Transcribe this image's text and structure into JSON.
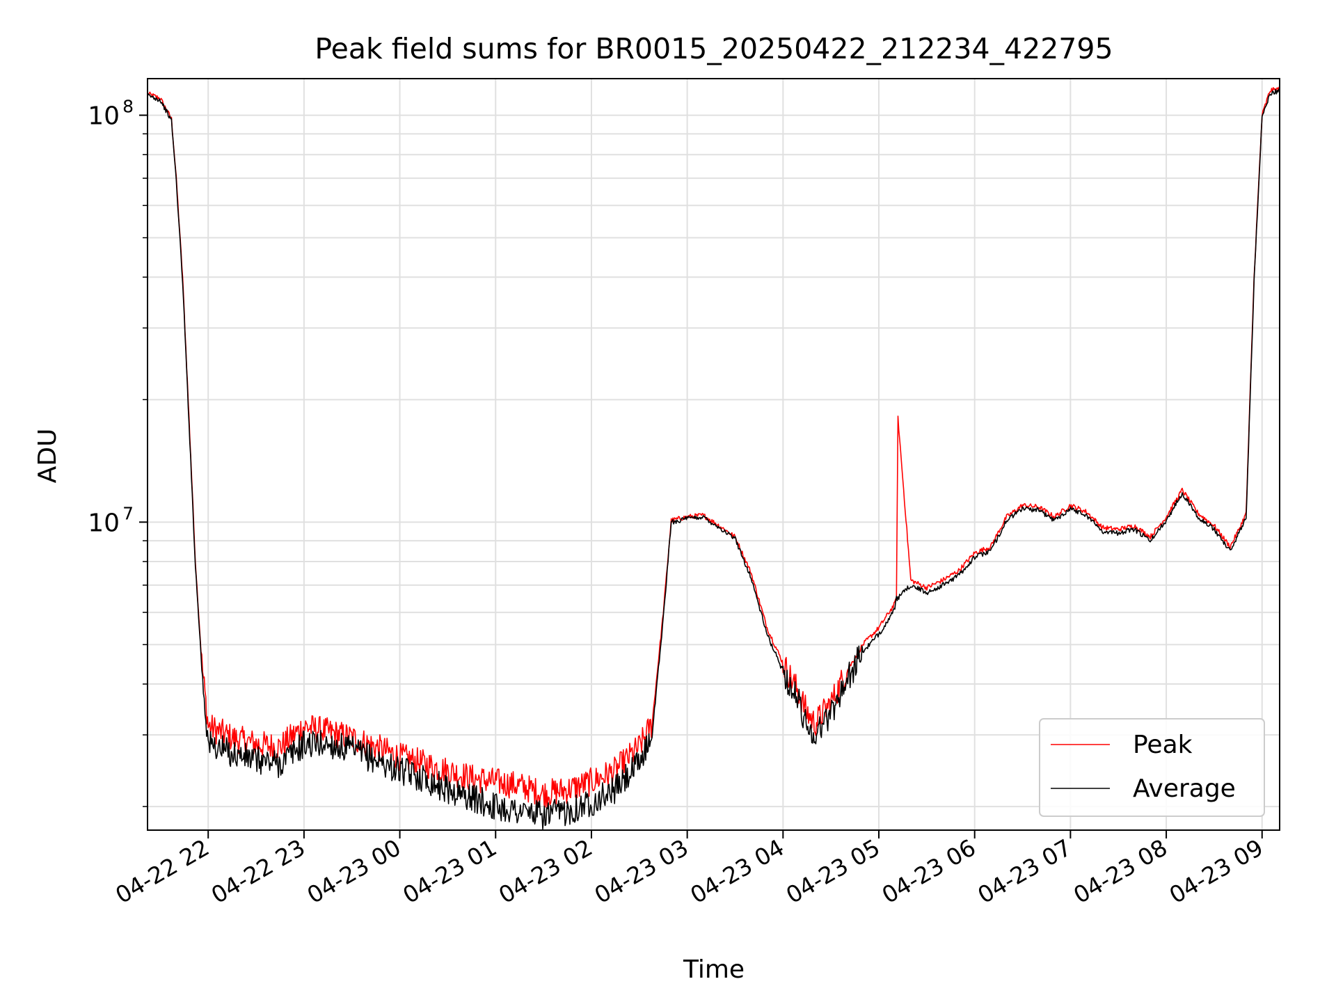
{
  "chart_data": {
    "type": "line",
    "title": "Peak field sums for BR0015_20250422_212234_422795",
    "xlabel": "Time",
    "ylabel": "ADU",
    "yscale": "log",
    "ylim": [
      1750000,
      123000000
    ],
    "xlim": [
      "2025-04-22 21:22",
      "2025-04-23 09:11"
    ],
    "grid": true,
    "legend_position": "lower right",
    "x_ticks": [
      "04-22 22",
      "04-22 23",
      "04-23 00",
      "04-23 01",
      "04-23 02",
      "04-23 03",
      "04-23 04",
      "04-23 05",
      "04-23 06",
      "04-23 07",
      "04-23 08",
      "04-23 09"
    ],
    "y_ticks": [
      {
        "value": 10000000,
        "base": "10",
        "exp": "7"
      },
      {
        "value": 100000000,
        "base": "10",
        "exp": "8"
      }
    ],
    "series": [
      {
        "name": "Peak",
        "color": "#ff0000",
        "x": [
          "2025-04-22 21:22",
          "2025-04-22 21:30",
          "2025-04-22 21:37",
          "2025-04-22 21:40",
          "2025-04-22 21:44",
          "2025-04-22 21:48",
          "2025-04-22 21:52",
          "2025-04-22 21:56",
          "2025-04-22 22:00",
          "2025-04-22 22:15",
          "2025-04-22 22:30",
          "2025-04-22 22:45",
          "2025-04-22 23:00",
          "2025-04-22 23:15",
          "2025-04-22 23:30",
          "2025-04-22 23:45",
          "2025-04-23 00:00",
          "2025-04-23 00:15",
          "2025-04-23 00:30",
          "2025-04-23 00:45",
          "2025-04-23 01:00",
          "2025-04-23 01:15",
          "2025-04-23 01:30",
          "2025-04-23 01:45",
          "2025-04-23 02:00",
          "2025-04-23 02:15",
          "2025-04-23 02:30",
          "2025-04-23 02:38",
          "2025-04-23 02:45",
          "2025-04-23 02:50",
          "2025-04-23 03:00",
          "2025-04-23 03:10",
          "2025-04-23 03:20",
          "2025-04-23 03:30",
          "2025-04-23 03:40",
          "2025-04-23 03:50",
          "2025-04-23 04:00",
          "2025-04-23 04:10",
          "2025-04-23 04:15",
          "2025-04-23 04:20",
          "2025-04-23 04:30",
          "2025-04-23 04:40",
          "2025-04-23 04:50",
          "2025-04-23 05:00",
          "2025-04-23 05:10",
          "2025-04-23 05:11",
          "2025-04-23 05:12",
          "2025-04-23 05:20",
          "2025-04-23 05:30",
          "2025-04-23 05:40",
          "2025-04-23 05:50",
          "2025-04-23 06:00",
          "2025-04-23 06:10",
          "2025-04-23 06:20",
          "2025-04-23 06:30",
          "2025-04-23 06:40",
          "2025-04-23 06:50",
          "2025-04-23 07:00",
          "2025-04-23 07:10",
          "2025-04-23 07:20",
          "2025-04-23 07:30",
          "2025-04-23 07:40",
          "2025-04-23 07:50",
          "2025-04-23 08:00",
          "2025-04-23 08:10",
          "2025-04-23 08:20",
          "2025-04-23 08:30",
          "2025-04-23 08:40",
          "2025-04-23 08:45",
          "2025-04-23 08:50",
          "2025-04-23 08:55",
          "2025-04-23 09:00",
          "2025-04-23 09:05",
          "2025-04-23 09:11"
        ],
        "y": [
          113000000,
          110000000,
          98000000,
          70000000,
          40000000,
          18000000,
          8000000,
          4500000,
          3150000,
          2950000,
          2850000,
          2800000,
          3150000,
          3050000,
          2950000,
          2800000,
          2650000,
          2550000,
          2450000,
          2350000,
          2300000,
          2250000,
          2150000,
          2200000,
          2300000,
          2450000,
          2800000,
          3200000,
          6000000,
          10100000,
          10300000,
          10400000,
          9800000,
          9200000,
          7500000,
          5500000,
          4500000,
          3800000,
          3400000,
          3200000,
          3600000,
          4300000,
          5000000,
          5500000,
          6300000,
          6600000,
          18000000,
          7200000,
          6900000,
          7200000,
          7600000,
          8400000,
          8700000,
          10300000,
          11000000,
          10900000,
          10300000,
          11000000,
          10600000,
          9700000,
          9600000,
          9800000,
          9200000,
          10300000,
          12000000,
          10500000,
          9800000,
          8700000,
          9500000,
          10500000,
          40000000,
          100000000,
          115000000,
          116000000
        ]
      },
      {
        "name": "Average",
        "color": "#000000",
        "x": [
          "2025-04-22 21:22",
          "2025-04-22 21:30",
          "2025-04-22 21:37",
          "2025-04-22 21:40",
          "2025-04-22 21:44",
          "2025-04-22 21:48",
          "2025-04-22 21:52",
          "2025-04-22 21:56",
          "2025-04-22 22:00",
          "2025-04-22 22:15",
          "2025-04-22 22:30",
          "2025-04-22 22:45",
          "2025-04-22 23:00",
          "2025-04-22 23:15",
          "2025-04-22 23:30",
          "2025-04-22 23:45",
          "2025-04-23 00:00",
          "2025-04-23 00:15",
          "2025-04-23 00:30",
          "2025-04-23 00:45",
          "2025-04-23 01:00",
          "2025-04-23 01:15",
          "2025-04-23 01:30",
          "2025-04-23 01:45",
          "2025-04-23 02:00",
          "2025-04-23 02:15",
          "2025-04-23 02:30",
          "2025-04-23 02:38",
          "2025-04-23 02:45",
          "2025-04-23 02:50",
          "2025-04-23 03:00",
          "2025-04-23 03:10",
          "2025-04-23 03:20",
          "2025-04-23 03:30",
          "2025-04-23 03:40",
          "2025-04-23 03:50",
          "2025-04-23 04:00",
          "2025-04-23 04:10",
          "2025-04-23 04:15",
          "2025-04-23 04:20",
          "2025-04-23 04:30",
          "2025-04-23 04:40",
          "2025-04-23 04:50",
          "2025-04-23 05:00",
          "2025-04-23 05:10",
          "2025-04-23 05:11",
          "2025-04-23 05:12",
          "2025-04-23 05:20",
          "2025-04-23 05:30",
          "2025-04-23 05:40",
          "2025-04-23 05:50",
          "2025-04-23 06:00",
          "2025-04-23 06:10",
          "2025-04-23 06:20",
          "2025-04-23 06:30",
          "2025-04-23 06:40",
          "2025-04-23 06:50",
          "2025-04-23 07:00",
          "2025-04-23 07:10",
          "2025-04-23 07:20",
          "2025-04-23 07:30",
          "2025-04-23 07:40",
          "2025-04-23 07:50",
          "2025-04-23 08:00",
          "2025-04-23 08:10",
          "2025-04-23 08:20",
          "2025-04-23 08:30",
          "2025-04-23 08:40",
          "2025-04-23 08:45",
          "2025-04-23 08:50",
          "2025-04-23 08:55",
          "2025-04-23 09:00",
          "2025-04-23 09:05",
          "2025-04-23 09:11"
        ],
        "y": [
          112000000,
          109000000,
          97000000,
          69000000,
          39000000,
          17500000,
          7800000,
          4400000,
          2850000,
          2700000,
          2600000,
          2550000,
          2850000,
          2850000,
          2750000,
          2600000,
          2450000,
          2350000,
          2200000,
          2100000,
          2000000,
          1950000,
          1900000,
          1950000,
          2050000,
          2200000,
          2550000,
          3000000,
          5800000,
          10000000,
          10200000,
          10300000,
          9700000,
          9100000,
          7300000,
          5300000,
          4300000,
          3600000,
          3150000,
          3000000,
          3400000,
          4100000,
          4800000,
          5300000,
          6100000,
          6500000,
          6500000,
          7000000,
          6700000,
          7000000,
          7400000,
          8200000,
          8500000,
          10100000,
          10800000,
          10700000,
          10100000,
          10800000,
          10400000,
          9500000,
          9400000,
          9600000,
          9000000,
          10100000,
          11800000,
          10300000,
          9600000,
          8500000,
          9300000,
          10300000,
          39000000,
          99000000,
          113000000,
          115000000
        ]
      }
    ]
  }
}
